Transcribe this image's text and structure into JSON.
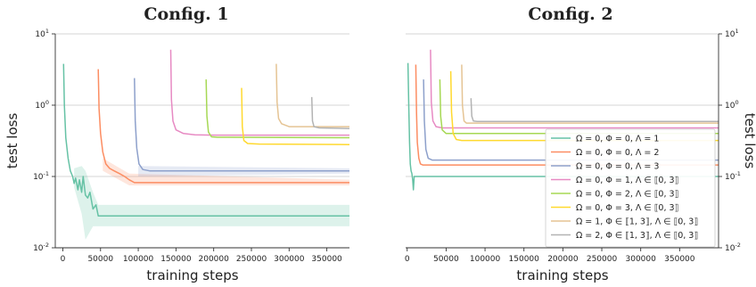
{
  "chart_data": [
    {
      "type": "line",
      "title": "Config. 1",
      "xlabel": "training steps",
      "ylabel": "test loss",
      "yscale": "log",
      "ylim": [
        0.01,
        10
      ],
      "xlim": [
        -10000,
        380000
      ],
      "xticks": [
        0,
        50000,
        100000,
        150000,
        200000,
        250000,
        300000,
        350000
      ],
      "xtick_labels": [
        "0",
        "50000",
        "100000",
        "150000",
        "200000",
        "250000",
        "300000",
        "350000"
      ],
      "ytick_labels": [
        "10^-2",
        "10^-1",
        "10^0",
        "10^1"
      ],
      "ylabel_side": "left",
      "grid": "horizontal",
      "legend": "none",
      "series": [
        {
          "color": "#66c2a5",
          "points": [
            [
              1000,
              3.8
            ],
            [
              2000,
              1.0
            ],
            [
              4000,
              0.35
            ],
            [
              7000,
              0.18
            ],
            [
              10000,
              0.12
            ],
            [
              13000,
              0.1
            ],
            [
              15000,
              0.08
            ],
            [
              17000,
              0.095
            ],
            [
              20000,
              0.065
            ],
            [
              22000,
              0.09
            ],
            [
              25000,
              0.06
            ],
            [
              27000,
              0.1
            ],
            [
              30000,
              0.055
            ],
            [
              33000,
              0.05
            ],
            [
              36000,
              0.06
            ],
            [
              40000,
              0.035
            ],
            [
              44000,
              0.04
            ],
            [
              47000,
              0.028
            ],
            [
              380000,
              0.028
            ]
          ],
          "band": [
            [
              15000,
              0.07,
              0.13
            ],
            [
              25000,
              0.03,
              0.14
            ],
            [
              30000,
              0.013,
              0.12
            ],
            [
              40000,
              0.02,
              0.06
            ],
            [
              47000,
              0.02,
              0.04
            ],
            [
              380000,
              0.02,
              0.04
            ]
          ]
        },
        {
          "color": "#fc8d62",
          "points": [
            [
              47000,
              3.2
            ],
            [
              48000,
              0.9
            ],
            [
              50000,
              0.4
            ],
            [
              53000,
              0.22
            ],
            [
              57000,
              0.15
            ],
            [
              62000,
              0.13
            ],
            [
              68000,
              0.12
            ],
            [
              75000,
              0.11
            ],
            [
              82000,
              0.1
            ],
            [
              88000,
              0.09
            ],
            [
              95000,
              0.082
            ],
            [
              380000,
              0.082
            ]
          ],
          "band": [
            [
              53000,
              0.12,
              0.18
            ],
            [
              88000,
              0.075,
              0.11
            ],
            [
              380000,
              0.075,
              0.09
            ]
          ]
        },
        {
          "color": "#8da0cb",
          "points": [
            [
              95000,
              2.4
            ],
            [
              96000,
              0.6
            ],
            [
              98000,
              0.25
            ],
            [
              101000,
              0.15
            ],
            [
              106000,
              0.125
            ],
            [
              115000,
              0.12
            ],
            [
              380000,
              0.12
            ]
          ],
          "band": [
            [
              100000,
              0.1,
              0.14
            ],
            [
              380000,
              0.11,
              0.13
            ]
          ]
        },
        {
          "color": "#e78ac3",
          "points": [
            [
              143000,
              6.0
            ],
            [
              144000,
              1.2
            ],
            [
              146000,
              0.6
            ],
            [
              150000,
              0.45
            ],
            [
              160000,
              0.4
            ],
            [
              175000,
              0.385
            ],
            [
              200000,
              0.38
            ],
            [
              380000,
              0.38
            ]
          ]
        },
        {
          "color": "#a6d854",
          "points": [
            [
              190000,
              2.3
            ],
            [
              191000,
              0.7
            ],
            [
              193000,
              0.42
            ],
            [
              197000,
              0.36
            ],
            [
              205000,
              0.355
            ],
            [
              380000,
              0.35
            ]
          ]
        },
        {
          "color": "#ffd92f",
          "points": [
            [
              237000,
              1.75
            ],
            [
              238000,
              0.5
            ],
            [
              240000,
              0.32
            ],
            [
              245000,
              0.29
            ],
            [
              260000,
              0.285
            ],
            [
              380000,
              0.28
            ]
          ]
        },
        {
          "color": "#e5c494",
          "points": [
            [
              283000,
              3.8
            ],
            [
              284000,
              1.1
            ],
            [
              286000,
              0.65
            ],
            [
              290000,
              0.55
            ],
            [
              300000,
              0.5
            ],
            [
              380000,
              0.5
            ]
          ]
        },
        {
          "color": "#b3b3b3",
          "points": [
            [
              330000,
              1.3
            ],
            [
              331000,
              0.6
            ],
            [
              333000,
              0.5
            ],
            [
              340000,
              0.48
            ],
            [
              380000,
              0.47
            ]
          ]
        }
      ]
    },
    {
      "type": "line",
      "title": "Config. 2",
      "xlabel": "training steps",
      "ylabel": "test loss",
      "yscale": "log",
      "ylim": [
        0.01,
        10
      ],
      "xlim": [
        -2000,
        400000
      ],
      "xticks": [
        0,
        50000,
        100000,
        150000,
        200000,
        250000,
        300000,
        350000
      ],
      "xtick_labels": [
        "0",
        "50000",
        "100000",
        "150000",
        "200000",
        "250000",
        "300000",
        "350000"
      ],
      "ytick_labels": [
        "10^-2",
        "10^-1",
        "10^0",
        "10^1"
      ],
      "ylabel_side": "right",
      "grid": "horizontal",
      "legend": "center-right",
      "series": [
        {
          "color": "#66c2a5",
          "label": "Ω = 0, Φ = 0, Λ = 1",
          "points": [
            [
              1000,
              3.9
            ],
            [
              2000,
              1.0
            ],
            [
              3000,
              0.3
            ],
            [
              4000,
              0.15
            ],
            [
              5000,
              0.12
            ],
            [
              6000,
              0.11
            ],
            [
              7000,
              0.09
            ],
            [
              8000,
              0.065
            ],
            [
              9000,
              0.1
            ],
            [
              400000,
              0.1
            ]
          ]
        },
        {
          "color": "#fc8d62",
          "label": "Ω = 0, Φ = 0, Λ = 2",
          "points": [
            [
              11000,
              3.7
            ],
            [
              12000,
              0.8
            ],
            [
              13000,
              0.3
            ],
            [
              15000,
              0.18
            ],
            [
              17000,
              0.15
            ],
            [
              20000,
              0.145
            ],
            [
              400000,
              0.145
            ]
          ]
        },
        {
          "color": "#8da0cb",
          "label": "Ω = 0, Φ = 0, Λ = 3",
          "points": [
            [
              21000,
              2.3
            ],
            [
              22000,
              0.6
            ],
            [
              24000,
              0.24
            ],
            [
              27000,
              0.18
            ],
            [
              32000,
              0.17
            ],
            [
              400000,
              0.17
            ]
          ]
        },
        {
          "color": "#e78ac3",
          "label": "Ω = 0, Φ = 1, Λ ∈ ⟦0, 3⟧",
          "points": [
            [
              30000,
              6.0
            ],
            [
              31000,
              1.1
            ],
            [
              33000,
              0.6
            ],
            [
              37000,
              0.5
            ],
            [
              45000,
              0.48
            ],
            [
              400000,
              0.48
            ]
          ]
        },
        {
          "color": "#a6d854",
          "label": "Ω = 0, Φ = 2, Λ ∈ ⟦0, 3⟧",
          "points": [
            [
              42000,
              2.3
            ],
            [
              43000,
              0.7
            ],
            [
              45000,
              0.45
            ],
            [
              50000,
              0.4
            ],
            [
              400000,
              0.4
            ]
          ]
        },
        {
          "color": "#ffd92f",
          "label": "Ω = 0, Φ = 3, Λ ∈ ⟦0, 3⟧",
          "points": [
            [
              56000,
              3.0
            ],
            [
              57000,
              0.8
            ],
            [
              59000,
              0.4
            ],
            [
              63000,
              0.33
            ],
            [
              70000,
              0.32
            ],
            [
              400000,
              0.32
            ]
          ]
        },
        {
          "color": "#e5c494",
          "label": "Ω = 1, Φ ∈ ⟦1, 3⟧, Λ ∈ ⟦0, 3⟧",
          "points": [
            [
              70000,
              3.7
            ],
            [
              71000,
              1.0
            ],
            [
              73000,
              0.6
            ],
            [
              76000,
              0.56
            ],
            [
              400000,
              0.56
            ]
          ]
        },
        {
          "color": "#b3b3b3",
          "label": "Ω = 2, Φ ∈ ⟦1, 3⟧, Λ ∈ ⟦0, 3⟧",
          "points": [
            [
              82000,
              1.25
            ],
            [
              83000,
              0.7
            ],
            [
              85000,
              0.6
            ],
            [
              90000,
              0.59
            ],
            [
              400000,
              0.59
            ]
          ]
        }
      ]
    }
  ]
}
